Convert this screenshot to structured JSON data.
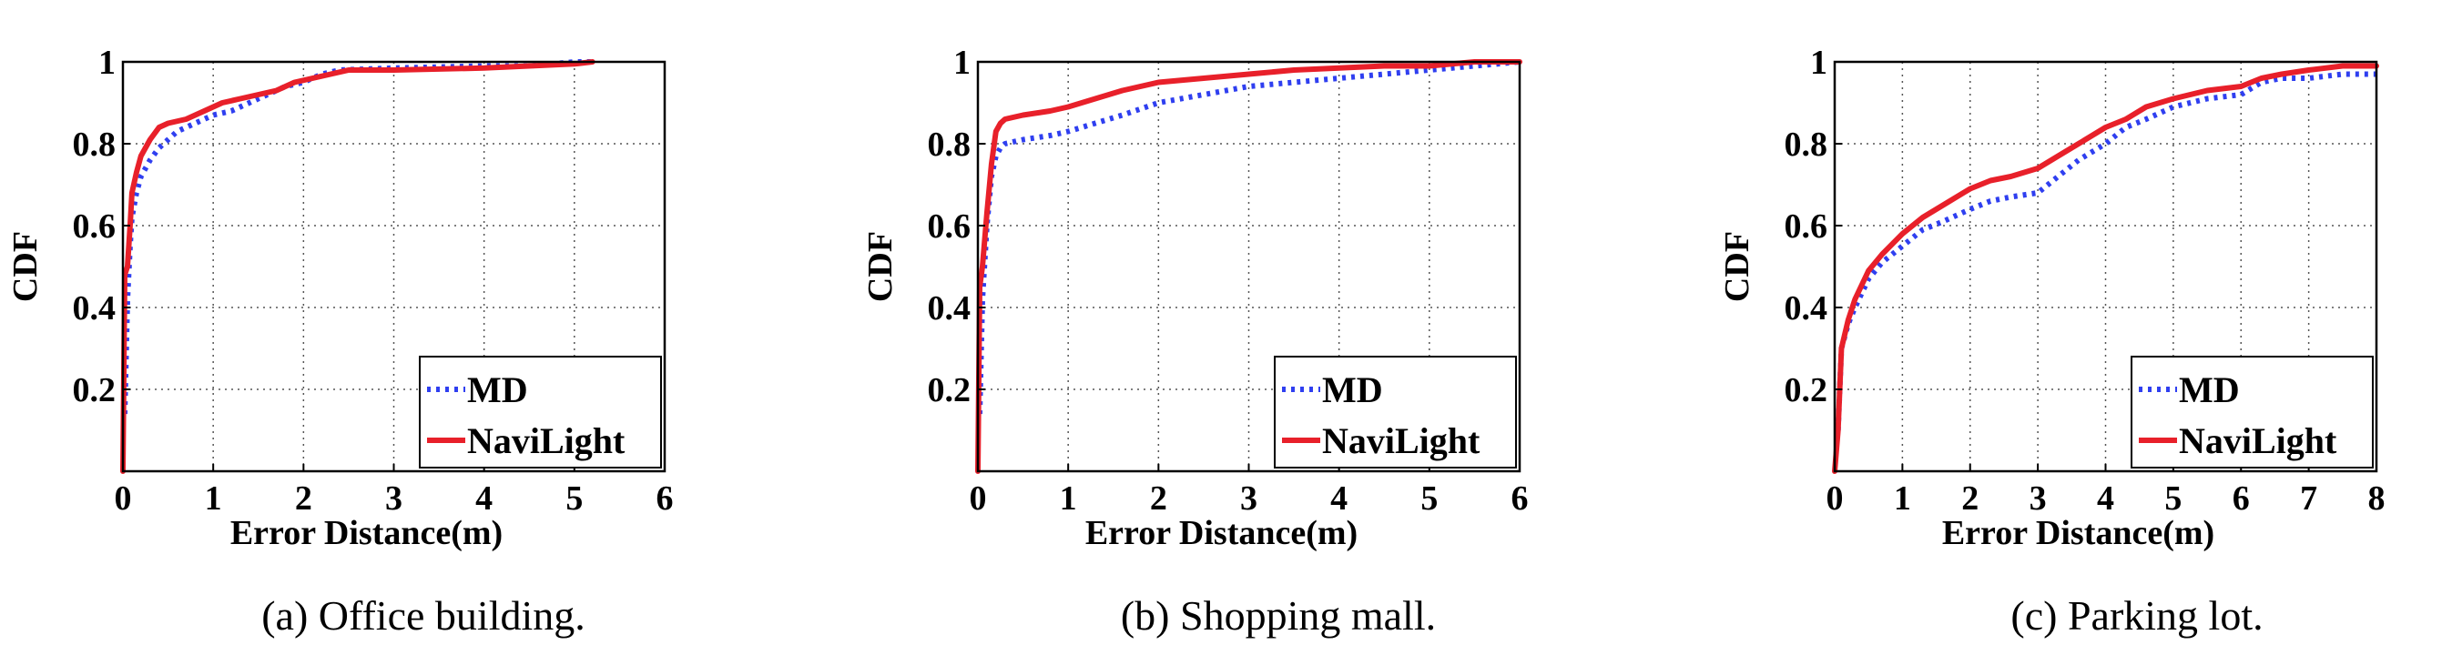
{
  "colors": {
    "md": "#2f3ff0",
    "navilight": "#e8202a",
    "grid": "#555555",
    "frame": "#000000"
  },
  "chart_data": [
    {
      "type": "line",
      "caption": "(a) Office building.",
      "xlabel": "Error Distance(m)",
      "ylabel": "CDF",
      "xlim": [
        0,
        6
      ],
      "ylim": [
        0,
        1
      ],
      "xticks": [
        "0",
        "1",
        "2",
        "3",
        "4",
        "5",
        "6"
      ],
      "yticks": [
        "0.2",
        "0.4",
        "0.6",
        "0.8",
        "1"
      ],
      "grid": true,
      "legend_position": "bottom-right",
      "series": [
        {
          "name": "MD",
          "style": "dotted",
          "x": [
            0.02,
            0.05,
            0.08,
            0.1,
            0.15,
            0.2,
            0.3,
            0.4,
            0.5,
            0.6,
            0.8,
            1.0,
            1.2,
            1.4,
            1.6,
            1.8,
            2.0,
            2.2,
            2.4,
            3.0,
            4.0,
            4.5,
            5.0,
            5.2
          ],
          "y": [
            0.14,
            0.42,
            0.55,
            0.62,
            0.68,
            0.72,
            0.76,
            0.79,
            0.81,
            0.83,
            0.85,
            0.87,
            0.88,
            0.9,
            0.92,
            0.94,
            0.95,
            0.97,
            0.98,
            0.985,
            0.99,
            0.99,
            1.0,
            1.0
          ]
        },
        {
          "name": "NaviLight",
          "style": "solid",
          "x": [
            0.0,
            0.02,
            0.05,
            0.08,
            0.1,
            0.15,
            0.2,
            0.3,
            0.4,
            0.5,
            0.7,
            0.9,
            1.1,
            1.3,
            1.5,
            1.7,
            1.9,
            2.1,
            2.3,
            2.5,
            3.0,
            4.0,
            4.5,
            5.0,
            5.2
          ],
          "y": [
            0.0,
            0.48,
            0.5,
            0.6,
            0.68,
            0.73,
            0.77,
            0.81,
            0.84,
            0.85,
            0.86,
            0.88,
            0.9,
            0.91,
            0.92,
            0.93,
            0.95,
            0.96,
            0.97,
            0.98,
            0.98,
            0.985,
            0.99,
            0.995,
            1.0
          ]
        }
      ]
    },
    {
      "type": "line",
      "caption": "(b) Shopping mall.",
      "xlabel": "Error Distance(m)",
      "ylabel": "CDF",
      "xlim": [
        0,
        6
      ],
      "ylim": [
        0,
        1
      ],
      "xticks": [
        "0",
        "1",
        "2",
        "3",
        "4",
        "5",
        "6"
      ],
      "yticks": [
        "0.2",
        "0.4",
        "0.6",
        "0.8",
        "1"
      ],
      "grid": true,
      "legend_position": "bottom-right",
      "series": [
        {
          "name": "MD",
          "style": "dotted",
          "x": [
            0.02,
            0.05,
            0.1,
            0.15,
            0.2,
            0.25,
            0.3,
            0.5,
            0.8,
            1.0,
            1.3,
            1.6,
            2.0,
            2.5,
            3.0,
            3.5,
            4.0,
            4.5,
            5.0,
            5.5,
            6.0
          ],
          "y": [
            0.14,
            0.42,
            0.6,
            0.72,
            0.77,
            0.79,
            0.8,
            0.81,
            0.82,
            0.83,
            0.85,
            0.87,
            0.9,
            0.92,
            0.94,
            0.95,
            0.96,
            0.97,
            0.98,
            0.99,
            1.0
          ]
        },
        {
          "name": "NaviLight",
          "style": "solid",
          "x": [
            0.0,
            0.02,
            0.05,
            0.1,
            0.15,
            0.2,
            0.25,
            0.3,
            0.5,
            0.8,
            1.0,
            1.3,
            1.6,
            2.0,
            2.5,
            3.0,
            3.5,
            4.0,
            4.5,
            5.0,
            5.5,
            6.0
          ],
          "y": [
            0.0,
            0.45,
            0.5,
            0.63,
            0.75,
            0.83,
            0.85,
            0.86,
            0.87,
            0.88,
            0.89,
            0.91,
            0.93,
            0.95,
            0.96,
            0.97,
            0.98,
            0.985,
            0.99,
            0.99,
            1.0,
            1.0
          ]
        }
      ]
    },
    {
      "type": "line",
      "caption": "(c) Parking lot.",
      "xlabel": "Error Distance(m)",
      "ylabel": "CDF",
      "xlim": [
        0,
        8
      ],
      "ylim": [
        0,
        1
      ],
      "xticks": [
        "0",
        "1",
        "2",
        "3",
        "4",
        "5",
        "6",
        "7",
        "8"
      ],
      "yticks": [
        "0.2",
        "0.4",
        "0.6",
        "0.8",
        "1"
      ],
      "grid": true,
      "legend_position": "bottom-right",
      "series": [
        {
          "name": "MD",
          "style": "dotted",
          "x": [
            0.05,
            0.1,
            0.2,
            0.3,
            0.5,
            0.7,
            1.0,
            1.3,
            1.6,
            2.0,
            2.3,
            2.6,
            3.0,
            3.3,
            3.6,
            4.0,
            4.3,
            4.6,
            5.0,
            5.5,
            6.0,
            6.3,
            6.6,
            7.0,
            7.5,
            8.0
          ],
          "y": [
            0.1,
            0.3,
            0.36,
            0.4,
            0.47,
            0.51,
            0.55,
            0.59,
            0.61,
            0.64,
            0.66,
            0.67,
            0.68,
            0.72,
            0.76,
            0.8,
            0.84,
            0.86,
            0.89,
            0.91,
            0.92,
            0.95,
            0.96,
            0.96,
            0.97,
            0.97
          ]
        },
        {
          "name": "NaviLight",
          "style": "solid",
          "x": [
            0.0,
            0.05,
            0.1,
            0.2,
            0.3,
            0.5,
            0.7,
            1.0,
            1.3,
            1.6,
            2.0,
            2.3,
            2.6,
            3.0,
            3.3,
            3.6,
            4.0,
            4.3,
            4.6,
            5.0,
            5.5,
            6.0,
            6.3,
            6.6,
            7.0,
            7.5,
            8.0
          ],
          "y": [
            0.0,
            0.1,
            0.3,
            0.37,
            0.42,
            0.49,
            0.53,
            0.58,
            0.62,
            0.65,
            0.69,
            0.71,
            0.72,
            0.74,
            0.77,
            0.8,
            0.84,
            0.86,
            0.89,
            0.91,
            0.93,
            0.94,
            0.96,
            0.97,
            0.98,
            0.99,
            0.99
          ]
        }
      ]
    }
  ]
}
